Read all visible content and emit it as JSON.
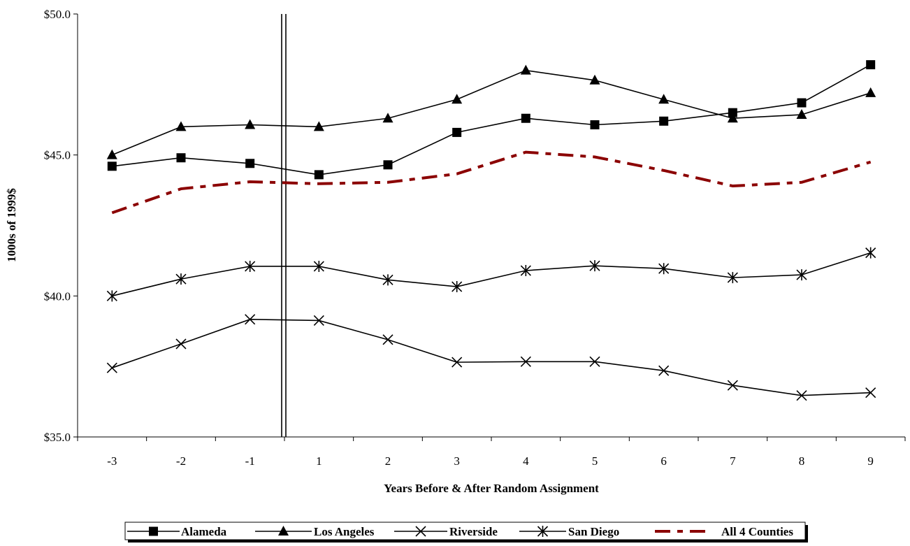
{
  "chart_data": {
    "type": "line",
    "title": "",
    "xlabel": "Years Before & After Random Assignment",
    "ylabel": "1000s of 1999$",
    "categories": [
      "-3",
      "-2",
      "-1",
      "1",
      "2",
      "3",
      "4",
      "5",
      "6",
      "7",
      "8",
      "9"
    ],
    "ylim": [
      35.0,
      50.0
    ],
    "yticks": [
      35.0,
      40.0,
      45.0,
      50.0
    ],
    "ytick_labels": [
      "$35.0",
      "$40.0",
      "$45.0",
      "$50.0"
    ],
    "random_assignment_marker": "between -1 and 1 (double vertical line)",
    "grid": false,
    "legend_position": "bottom",
    "series": [
      {
        "name": "Alameda",
        "marker": "square",
        "style": "solid",
        "color": "#000000",
        "values": [
          44.6,
          44.9,
          44.7,
          44.3,
          44.65,
          45.8,
          46.3,
          46.07,
          46.2,
          46.5,
          46.85,
          48.2
        ]
      },
      {
        "name": "Los Angeles",
        "marker": "triangle",
        "style": "solid",
        "color": "#000000",
        "values": [
          45.0,
          46.0,
          46.07,
          46.0,
          46.3,
          46.97,
          48.0,
          47.65,
          46.97,
          46.3,
          46.43,
          47.2
        ]
      },
      {
        "name": "Riverside",
        "marker": "x",
        "style": "solid",
        "color": "#000000",
        "values": [
          37.45,
          38.3,
          39.17,
          39.13,
          38.45,
          37.65,
          37.67,
          37.67,
          37.35,
          36.83,
          36.47,
          36.57
        ]
      },
      {
        "name": "San Diego",
        "marker": "asterisk",
        "style": "solid",
        "color": "#000000",
        "values": [
          40.0,
          40.6,
          41.05,
          41.05,
          40.57,
          40.33,
          40.9,
          41.07,
          40.97,
          40.65,
          40.75,
          41.53
        ]
      },
      {
        "name": "All 4 Counties",
        "marker": "none",
        "style": "dash-dot",
        "color": "#8B0000",
        "values": [
          42.95,
          43.8,
          44.05,
          43.98,
          44.03,
          44.33,
          45.1,
          44.93,
          44.45,
          43.9,
          44.03,
          44.75
        ]
      }
    ]
  }
}
